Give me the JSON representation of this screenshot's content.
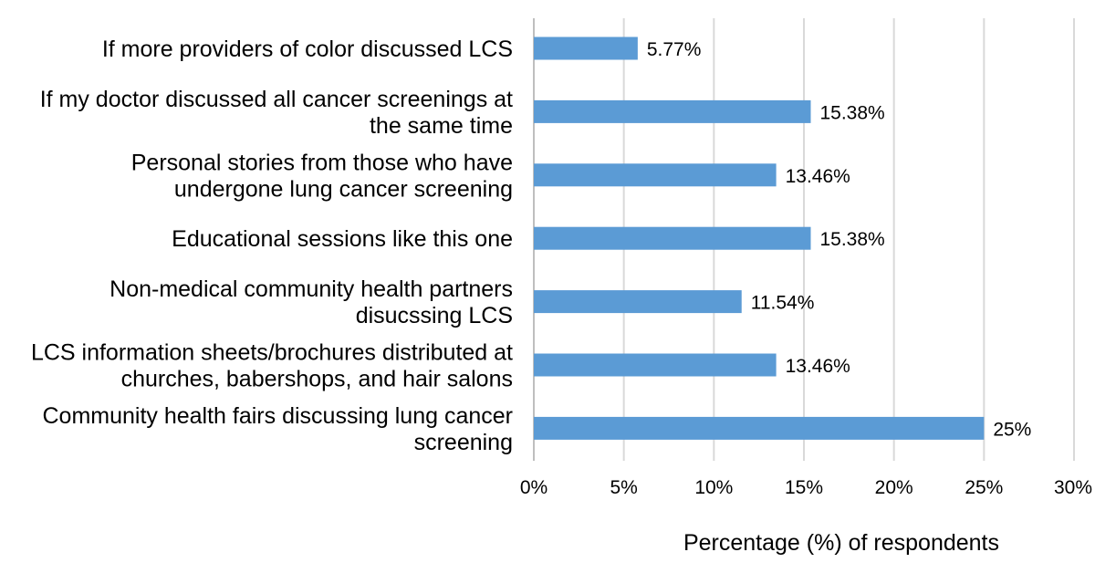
{
  "chart_data": {
    "type": "bar",
    "orientation": "horizontal",
    "categories": [
      [
        "If more providers of color discussed LCS"
      ],
      [
        "If my doctor discussed all cancer screenings at",
        "the same time"
      ],
      [
        "Personal stories from those who have",
        "undergone lung cancer screening"
      ],
      [
        "Educational sessions like this one"
      ],
      [
        "Non-medical community health partners",
        "disucssing LCS"
      ],
      [
        "LCS information sheets/brochures distributed at",
        "churches, babershops, and hair salons"
      ],
      [
        "Community health fairs discussing lung cancer",
        "screening"
      ]
    ],
    "values": [
      5.77,
      15.38,
      13.46,
      15.38,
      11.54,
      13.46,
      25
    ],
    "value_labels": [
      "5.77%",
      "15.38%",
      "13.46%",
      "15.38%",
      "11.54%",
      "13.46%",
      "25%"
    ],
    "xlim": [
      0,
      30
    ],
    "xticks": [
      0,
      5,
      10,
      15,
      20,
      25,
      30
    ],
    "xtick_labels": [
      "0%",
      "5%",
      "10%",
      "15%",
      "20%",
      "25%",
      "30%"
    ],
    "xlabel": "Percentage (%) of respondents",
    "ylabel": "",
    "title": "",
    "grid": true,
    "bar_color": "#5b9bd5"
  }
}
